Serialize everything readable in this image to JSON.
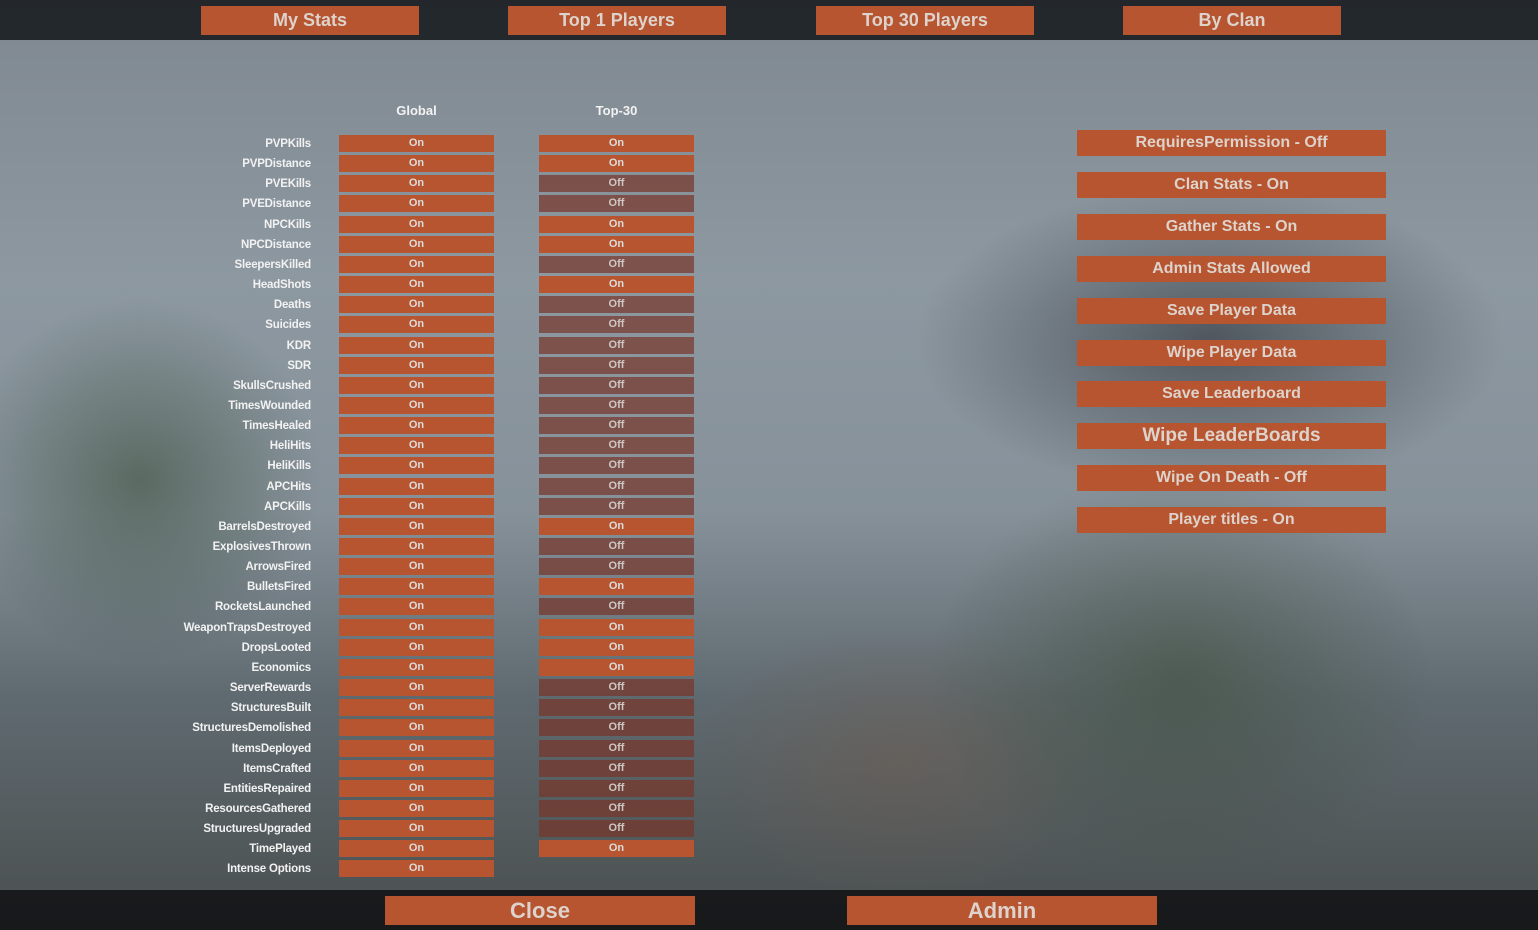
{
  "nav": [
    "My Stats",
    "Top 1 Players",
    "Top 30 Players",
    "By Clan"
  ],
  "columns": {
    "global": "Global",
    "top30": "Top-30"
  },
  "stats": [
    {
      "name": "PVPKills",
      "global": "On",
      "top30": "On"
    },
    {
      "name": "PVPDistance",
      "global": "On",
      "top30": "On"
    },
    {
      "name": "PVEKills",
      "global": "On",
      "top30": "Off"
    },
    {
      "name": "PVEDistance",
      "global": "On",
      "top30": "Off"
    },
    {
      "name": "NPCKills",
      "global": "On",
      "top30": "On"
    },
    {
      "name": "NPCDistance",
      "global": "On",
      "top30": "On"
    },
    {
      "name": "SleepersKilled",
      "global": "On",
      "top30": "Off"
    },
    {
      "name": "HeadShots",
      "global": "On",
      "top30": "On"
    },
    {
      "name": "Deaths",
      "global": "On",
      "top30": "Off"
    },
    {
      "name": "Suicides",
      "global": "On",
      "top30": "Off"
    },
    {
      "name": "KDR",
      "global": "On",
      "top30": "Off"
    },
    {
      "name": "SDR",
      "global": "On",
      "top30": "Off"
    },
    {
      "name": "SkullsCrushed",
      "global": "On",
      "top30": "Off"
    },
    {
      "name": "TimesWounded",
      "global": "On",
      "top30": "Off"
    },
    {
      "name": "TimesHealed",
      "global": "On",
      "top30": "Off"
    },
    {
      "name": "HeliHits",
      "global": "On",
      "top30": "Off"
    },
    {
      "name": "HeliKills",
      "global": "On",
      "top30": "Off"
    },
    {
      "name": "APCHits",
      "global": "On",
      "top30": "Off"
    },
    {
      "name": "APCKills",
      "global": "On",
      "top30": "Off"
    },
    {
      "name": "BarrelsDestroyed",
      "global": "On",
      "top30": "On"
    },
    {
      "name": "ExplosivesThrown",
      "global": "On",
      "top30": "Off"
    },
    {
      "name": "ArrowsFired",
      "global": "On",
      "top30": "Off"
    },
    {
      "name": "BulletsFired",
      "global": "On",
      "top30": "On"
    },
    {
      "name": "RocketsLaunched",
      "global": "On",
      "top30": "Off"
    },
    {
      "name": "WeaponTrapsDestroyed",
      "global": "On",
      "top30": "On"
    },
    {
      "name": "DropsLooted",
      "global": "On",
      "top30": "On"
    },
    {
      "name": "Economics",
      "global": "On",
      "top30": "On"
    },
    {
      "name": "ServerRewards",
      "global": "On",
      "top30": "Off"
    },
    {
      "name": "StructuresBuilt",
      "global": "On",
      "top30": "Off"
    },
    {
      "name": "StructuresDemolished",
      "global": "On",
      "top30": "Off"
    },
    {
      "name": "ItemsDeployed",
      "global": "On",
      "top30": "Off"
    },
    {
      "name": "ItemsCrafted",
      "global": "On",
      "top30": "Off"
    },
    {
      "name": "EntitiesRepaired",
      "global": "On",
      "top30": "Off"
    },
    {
      "name": "ResourcesGathered",
      "global": "On",
      "top30": "Off"
    },
    {
      "name": "StructuresUpgraded",
      "global": "On",
      "top30": "Off"
    },
    {
      "name": "TimePlayed",
      "global": "On",
      "top30": "On"
    },
    {
      "name": "Intense Options",
      "global": "On",
      "top30": null
    }
  ],
  "admin_buttons": [
    "RequiresPermission - Off",
    "Clan Stats - On",
    "Gather Stats - On",
    "Admin Stats Allowed",
    "Save Player Data",
    "Wipe Player Data",
    "Save Leaderboard",
    "Wipe LeaderBoards",
    "Wipe On Death - Off",
    "Player titles - On"
  ],
  "footer": {
    "close": "Close",
    "admin": "Admin"
  },
  "colors": {
    "accent": "#b6552f",
    "off": "#7a3428",
    "text": "#dcdcdc"
  }
}
